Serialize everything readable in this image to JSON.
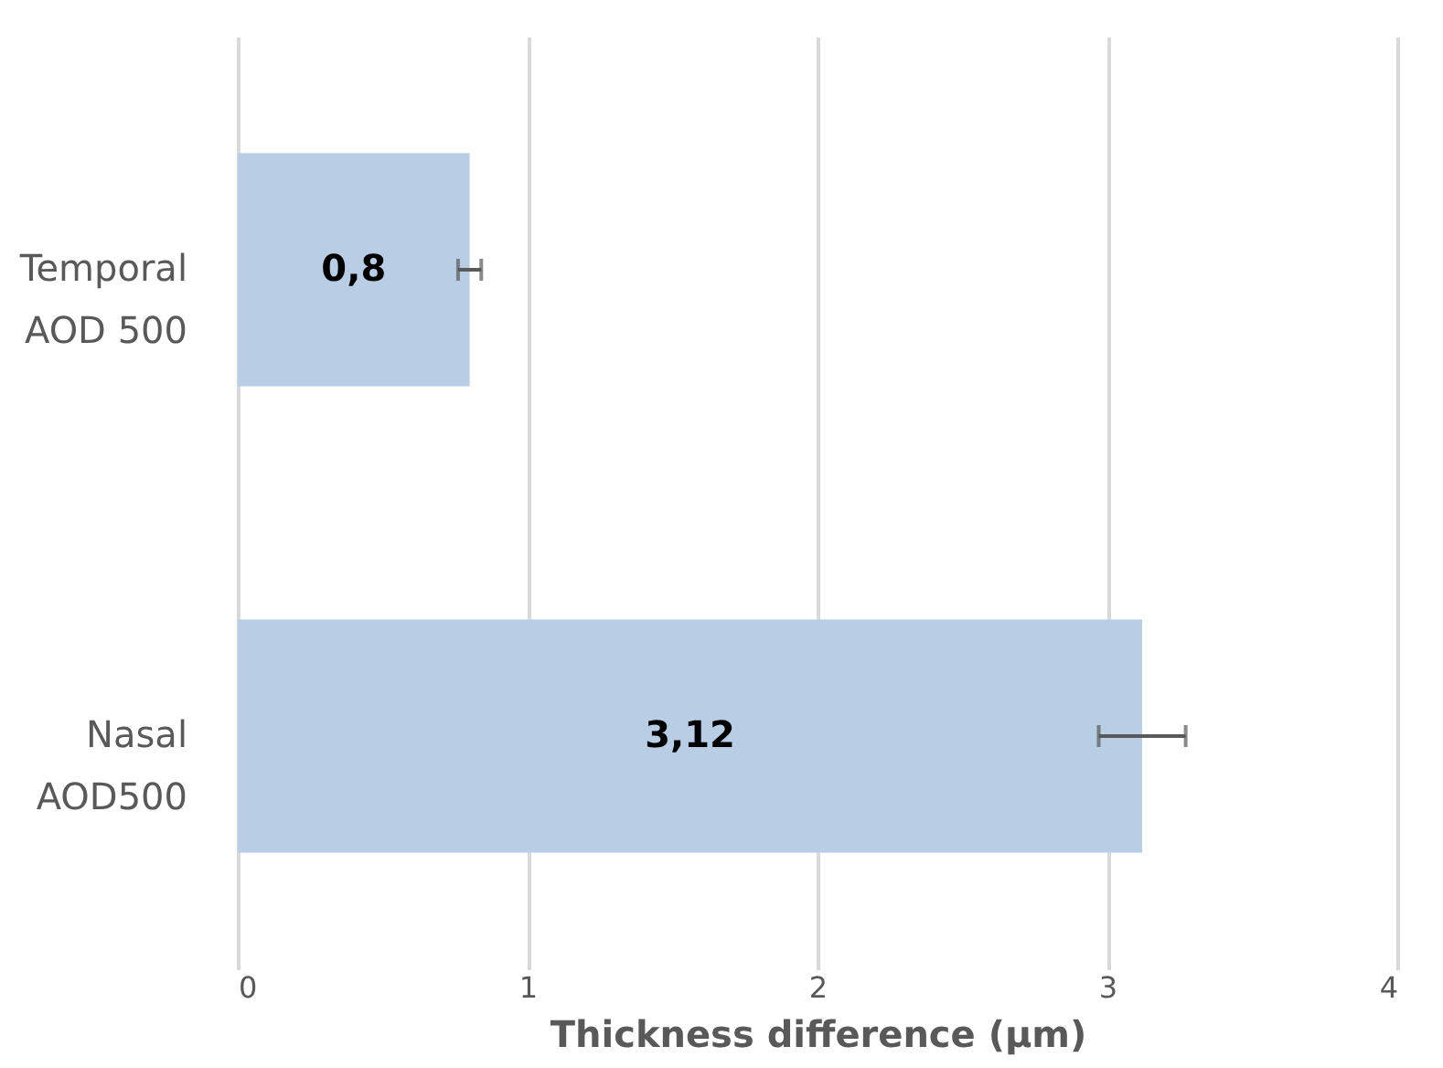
{
  "chart_data": {
    "type": "bar",
    "orientation": "horizontal",
    "categories": [
      "Temporal\nAOD 500",
      "Nasal\nAOD500"
    ],
    "values": [
      0.8,
      3.12
    ],
    "errors": [
      0.04,
      0.15
    ],
    "value_labels": [
      "0,8",
      "3,12"
    ],
    "color": "#b9cde5",
    "xlabel": "Thickness difference (µm)",
    "xlim": [
      0,
      4
    ],
    "xticks": [
      0,
      1,
      2,
      3,
      4
    ],
    "grid": "x"
  }
}
